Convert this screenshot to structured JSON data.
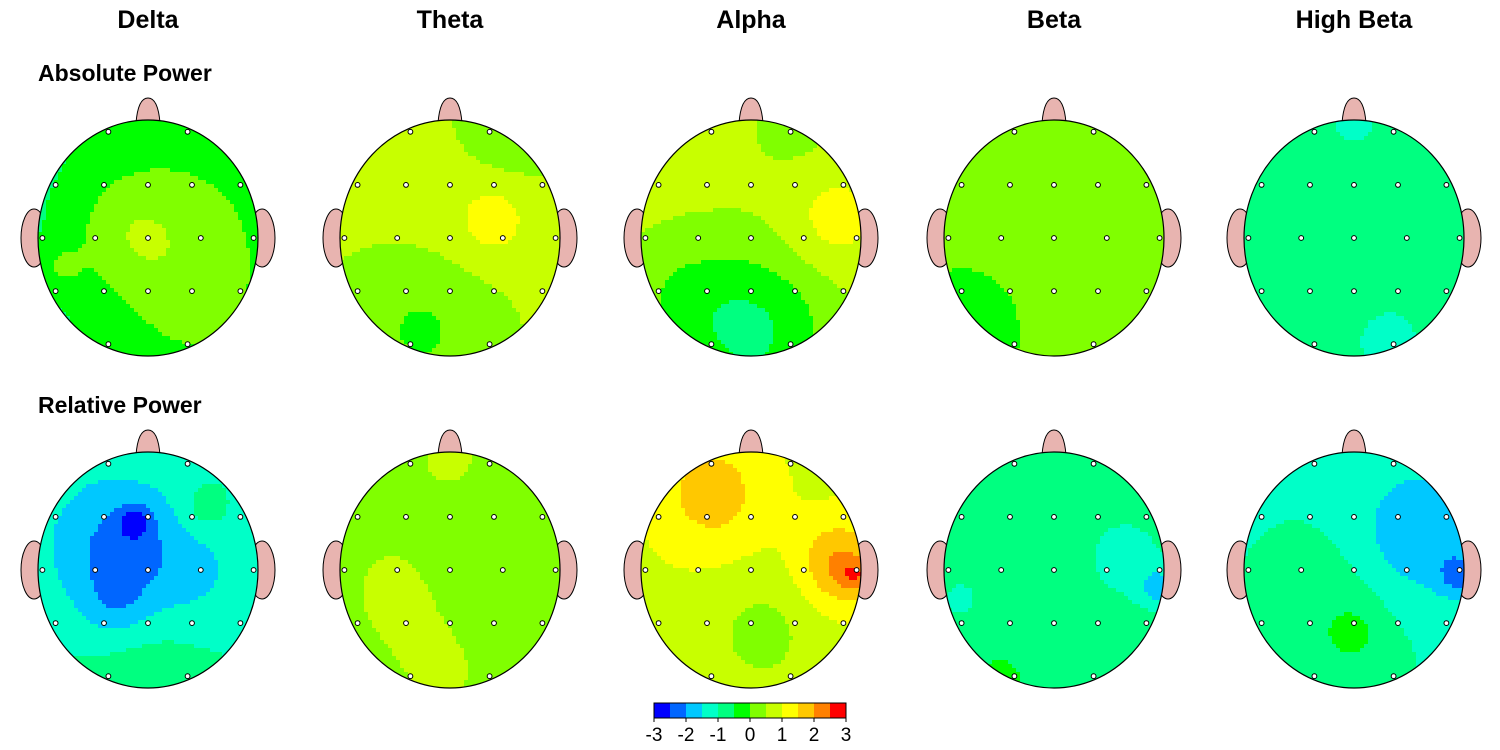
{
  "chart_data": {
    "type": "heatmap",
    "subtype": "eeg-topographic-maps",
    "bands": [
      "Delta",
      "Theta",
      "Alpha",
      "Beta",
      "High Beta"
    ],
    "rows": [
      {
        "label": "Absolute Power",
        "maps": [
          {
            "band": "Delta",
            "base": -0.7,
            "blobs": [
              {
                "x": 0.35,
                "y": -0.1,
                "r": 0.7,
                "a": 0.75
              },
              {
                "x": -0.2,
                "y": -0.05,
                "r": 0.35,
                "a": 0.55
              },
              {
                "x": 0.45,
                "y": 0.7,
                "r": 0.55,
                "a": 0.45
              },
              {
                "x": -0.8,
                "y": 0.25,
                "r": 0.15,
                "a": 0.5
              }
            ]
          },
          {
            "band": "Theta",
            "base": 0.55,
            "blobs": [
              {
                "x": -0.25,
                "y": 0.75,
                "r": 0.45,
                "a": -0.65
              },
              {
                "x": 0.55,
                "y": -0.95,
                "r": 0.3,
                "a": -0.5
              },
              {
                "x": 0.4,
                "y": -0.15,
                "r": 0.22,
                "a": 0.6
              },
              {
                "x": 0.05,
                "y": -0.1,
                "r": 0.55,
                "a": 0.2
              }
            ]
          },
          {
            "band": "Alpha",
            "base": 0.65,
            "blobs": [
              {
                "x": 0.0,
                "y": 0.8,
                "r": 0.5,
                "a": -1.25
              },
              {
                "x": -0.7,
                "y": 0.45,
                "r": 0.35,
                "a": -0.4
              },
              {
                "x": 0.75,
                "y": -0.15,
                "r": 0.3,
                "a": 0.6
              },
              {
                "x": 0.4,
                "y": -0.95,
                "r": 0.3,
                "a": -0.3
              }
            ]
          },
          {
            "band": "Beta",
            "base": 0.05,
            "blobs": [
              {
                "x": 0.05,
                "y": -0.45,
                "r": 0.16,
                "a": 0.45
              },
              {
                "x": -0.85,
                "y": 0.8,
                "r": 0.25,
                "a": -0.5
              }
            ]
          },
          {
            "band": "High Beta",
            "base": -0.65,
            "blobs": [
              {
                "x": 0.0,
                "y": -0.95,
                "r": 0.3,
                "a": -0.45
              },
              {
                "x": 0.3,
                "y": 0.85,
                "r": 0.35,
                "a": -0.5
              },
              {
                "x": -0.85,
                "y": -0.45,
                "r": 0.15,
                "a": -0.4
              },
              {
                "x": -0.1,
                "y": 0.0,
                "r": 0.6,
                "a": 0.15
              }
            ]
          }
        ]
      },
      {
        "label": "Relative Power",
        "maps": [
          {
            "band": "Delta",
            "base": -1.0,
            "blobs": [
              {
                "x": -0.3,
                "y": -0.2,
                "r": 0.45,
                "a": -1.1
              },
              {
                "x": -0.3,
                "y": 0.3,
                "r": 0.22,
                "a": -0.55
              },
              {
                "x": -0.12,
                "y": -0.4,
                "r": 0.1,
                "a": -0.9
              },
              {
                "x": 0.0,
                "y": 0.75,
                "r": 0.45,
                "a": 0.35
              },
              {
                "x": 0.5,
                "y": -0.5,
                "r": 0.16,
                "a": 0.5
              },
              {
                "x": 0.4,
                "y": 0.05,
                "r": 0.4,
                "a": -0.5
              }
            ]
          },
          {
            "band": "Theta",
            "base": 0.15,
            "blobs": [
              {
                "x": 0.0,
                "y": -0.95,
                "r": 0.3,
                "a": 0.45
              },
              {
                "x": -0.5,
                "y": 0.15,
                "r": 0.4,
                "a": 0.45
              },
              {
                "x": -0.05,
                "y": 0.85,
                "r": 0.4,
                "a": 0.4
              },
              {
                "x": 0.3,
                "y": 0.0,
                "r": 0.45,
                "a": -0.15
              }
            ]
          },
          {
            "band": "Alpha",
            "base": 0.9,
            "blobs": [
              {
                "x": -0.35,
                "y": -0.65,
                "r": 0.35,
                "a": 0.85
              },
              {
                "x": 0.8,
                "y": -0.05,
                "r": 0.25,
                "a": 1.2
              },
              {
                "x": 0.95,
                "y": 0.05,
                "r": 0.1,
                "a": 0.8
              },
              {
                "x": 0.1,
                "y": 0.55,
                "r": 0.35,
                "a": -0.55
              }
            ]
          },
          {
            "band": "Beta",
            "base": -0.6,
            "blobs": [
              {
                "x": 0.65,
                "y": -0.1,
                "r": 0.35,
                "a": -0.55
              },
              {
                "x": 0.95,
                "y": 0.15,
                "r": 0.12,
                "a": -0.9
              },
              {
                "x": -0.85,
                "y": 0.25,
                "r": 0.25,
                "a": -0.45
              },
              {
                "x": -0.5,
                "y": 0.95,
                "r": 0.1,
                "a": 0.6
              }
            ]
          },
          {
            "band": "High Beta",
            "base": -1.05,
            "blobs": [
              {
                "x": 0.6,
                "y": -0.3,
                "r": 0.4,
                "a": -0.9
              },
              {
                "x": 0.95,
                "y": 0.05,
                "r": 0.12,
                "a": -0.9
              },
              {
                "x": -0.2,
                "y": 0.4,
                "r": 0.45,
                "a": 0.45
              },
              {
                "x": 0.0,
                "y": 0.55,
                "r": 0.15,
                "a": 0.4
              }
            ]
          }
        ]
      }
    ],
    "electrodes": [
      {
        "x": -0.36,
        "y": -0.9
      },
      {
        "x": 0.36,
        "y": -0.9
      },
      {
        "x": -0.84,
        "y": -0.45
      },
      {
        "x": -0.4,
        "y": -0.45
      },
      {
        "x": 0.0,
        "y": -0.45
      },
      {
        "x": 0.4,
        "y": -0.45
      },
      {
        "x": 0.84,
        "y": -0.45
      },
      {
        "x": -0.96,
        "y": 0.0
      },
      {
        "x": -0.48,
        "y": 0.0
      },
      {
        "x": 0.0,
        "y": 0.0
      },
      {
        "x": 0.48,
        "y": 0.0
      },
      {
        "x": 0.96,
        "y": 0.0
      },
      {
        "x": -0.84,
        "y": 0.45
      },
      {
        "x": -0.4,
        "y": 0.45
      },
      {
        "x": 0.0,
        "y": 0.45
      },
      {
        "x": 0.4,
        "y": 0.45
      },
      {
        "x": 0.84,
        "y": 0.45
      },
      {
        "x": -0.36,
        "y": 0.9
      },
      {
        "x": 0.36,
        "y": 0.9
      }
    ],
    "colorbar": {
      "range": [
        -3,
        3
      ],
      "tick_labels": [
        "-3",
        "-2",
        "-1",
        "0",
        "1",
        "2",
        "3"
      ],
      "colors": [
        "#0000ff",
        "#0066ff",
        "#00c8ff",
        "#00ffc8",
        "#00ff80",
        "#00ff00",
        "#80ff00",
        "#c8ff00",
        "#ffff00",
        "#ffc800",
        "#ff8000",
        "#ff0000"
      ]
    },
    "head_outline_color": "#000000",
    "ear_nose_color": "#e8b4b0"
  }
}
